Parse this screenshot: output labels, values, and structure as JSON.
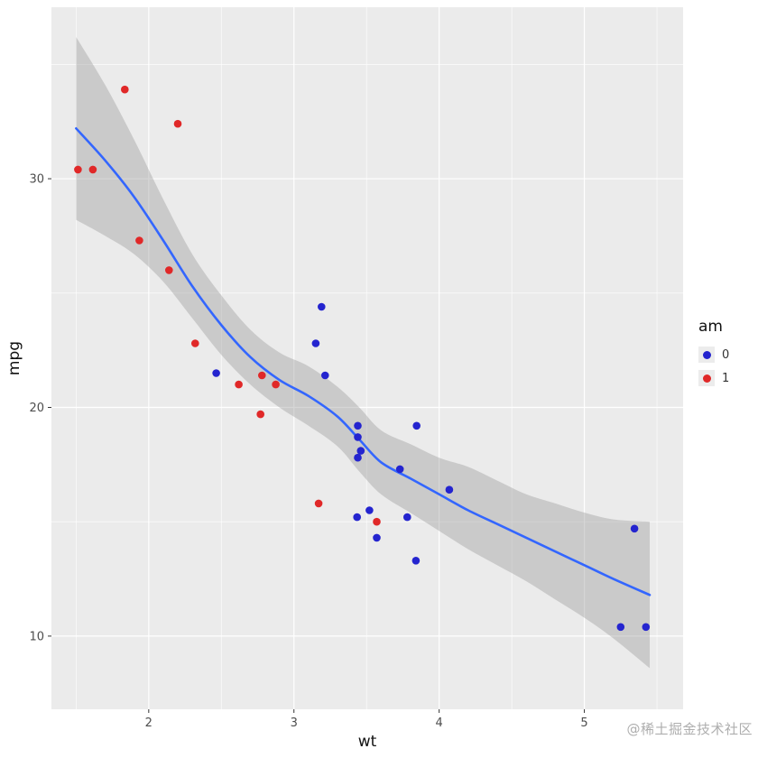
{
  "watermark": {
    "text": "@稀土掘金技术社区"
  },
  "chart_data": {
    "type": "scatter",
    "title": "",
    "xlabel": "wt",
    "ylabel": "mpg",
    "xlim": [
      1.33,
      5.68
    ],
    "ylim": [
      6.8,
      37.5
    ],
    "x_major_ticks": [
      2,
      3,
      4,
      5
    ],
    "x_minor_ticks": [
      1.5,
      2.5,
      3.5,
      4.5,
      5.5
    ],
    "y_major_ticks": [
      10,
      20,
      30
    ],
    "y_minor_ticks": [
      15,
      25,
      35
    ],
    "grid": true,
    "panel_bg": "#EBEBEB",
    "grid_color": "#FFFFFF",
    "tick_color": "#333333",
    "legend": {
      "title": "am",
      "position": "right",
      "entries": [
        {
          "label": "0",
          "color": "#2424CF"
        },
        {
          "label": "1",
          "color": "#E02828"
        }
      ]
    },
    "series": [
      {
        "name": "am-0",
        "color": "#2424CF",
        "points": [
          [
            3.215,
            21.4
          ],
          [
            3.44,
            18.7
          ],
          [
            3.46,
            18.1
          ],
          [
            3.57,
            14.3
          ],
          [
            3.19,
            24.4
          ],
          [
            3.15,
            22.8
          ],
          [
            3.44,
            19.2
          ],
          [
            3.44,
            17.8
          ],
          [
            4.07,
            16.4
          ],
          [
            3.73,
            17.3
          ],
          [
            3.78,
            15.2
          ],
          [
            5.25,
            10.4
          ],
          [
            5.424,
            10.4
          ],
          [
            5.345,
            14.7
          ],
          [
            2.465,
            21.5
          ],
          [
            3.52,
            15.5
          ],
          [
            3.435,
            15.2
          ],
          [
            3.84,
            13.3
          ],
          [
            3.845,
            19.2
          ]
        ]
      },
      {
        "name": "am-1",
        "color": "#E02828",
        "points": [
          [
            2.62,
            21.0
          ],
          [
            2.875,
            21.0
          ],
          [
            2.32,
            22.8
          ],
          [
            2.2,
            32.4
          ],
          [
            1.615,
            30.4
          ],
          [
            1.835,
            33.9
          ],
          [
            1.935,
            27.3
          ],
          [
            2.14,
            26.0
          ],
          [
            1.513,
            30.4
          ],
          [
            3.17,
            15.8
          ],
          [
            2.77,
            19.7
          ],
          [
            3.57,
            15.0
          ],
          [
            2.78,
            21.4
          ]
        ]
      }
    ],
    "smooth": {
      "method": "loess",
      "color": "#3366FF",
      "ribbon_color": "rgba(153,153,153,0.4)",
      "x": [
        1.5,
        1.7,
        1.9,
        2.1,
        2.3,
        2.5,
        2.7,
        2.9,
        3.1,
        3.3,
        3.45,
        3.6,
        3.8,
        4.0,
        4.2,
        4.4,
        4.6,
        4.8,
        5.0,
        5.2,
        5.45
      ],
      "fit": [
        32.2,
        30.8,
        29.2,
        27.3,
        25.3,
        23.6,
        22.2,
        21.2,
        20.5,
        19.6,
        18.6,
        17.6,
        16.9,
        16.2,
        15.5,
        14.9,
        14.3,
        13.7,
        13.1,
        12.5,
        11.8
      ],
      "lower": [
        28.2,
        27.5,
        26.7,
        25.5,
        23.9,
        22.3,
        21.0,
        20.0,
        19.2,
        18.3,
        17.2,
        16.2,
        15.4,
        14.6,
        13.8,
        13.1,
        12.4,
        11.6,
        10.8,
        9.9,
        8.6
      ],
      "upper": [
        36.2,
        34.1,
        31.7,
        29.1,
        26.7,
        24.9,
        23.4,
        22.4,
        21.8,
        20.9,
        20.0,
        19.0,
        18.4,
        17.8,
        17.4,
        16.8,
        16.2,
        15.8,
        15.4,
        15.1,
        15.0
      ]
    }
  }
}
